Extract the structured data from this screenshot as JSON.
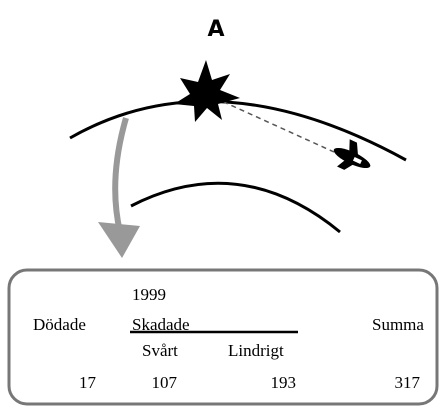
{
  "title": "A",
  "table": {
    "year": "1999",
    "headers": {
      "killed": "Dödade",
      "injured": "Skadade",
      "severe": "Svårt",
      "minor": "Lindrigt",
      "total": "Summa"
    },
    "values": [
      17,
      107,
      193,
      317
    ]
  }
}
